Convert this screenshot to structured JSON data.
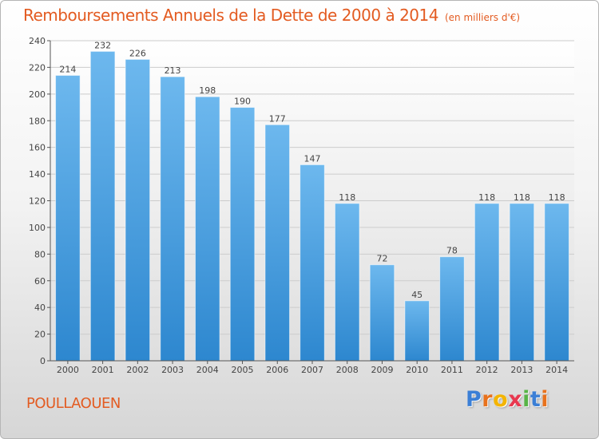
{
  "header": {
    "title": "Remboursements Annuels de la Dette de 2000 à 2014",
    "subtitle": "(en milliers d'€)"
  },
  "footer": {
    "commune": "POULLAOUEN",
    "brand": "Proxiti",
    "brand_letters": [
      "P",
      "r",
      "o",
      "x",
      "i",
      "t",
      "i"
    ]
  },
  "colors": {
    "title": "#e35b21",
    "bar_light": "#6db8ee",
    "bar_dark": "#2d87cf",
    "grid": "#cccccc",
    "brand_letters": [
      "#3b7fd6",
      "#e8721d",
      "#f4b400",
      "#e8384f",
      "#58b447",
      "#3b7fd6",
      "#e8721d"
    ]
  },
  "chart_data": {
    "type": "bar",
    "title": "Remboursements Annuels de la Dette de 2000 à 2014",
    "subtitle": "(en milliers d'€)",
    "xlabel": "",
    "ylabel": "",
    "categories": [
      "2000",
      "2001",
      "2002",
      "2003",
      "2004",
      "2005",
      "2006",
      "2007",
      "2008",
      "2009",
      "2010",
      "2011",
      "2012",
      "2013",
      "2014"
    ],
    "values": [
      214,
      232,
      226,
      213,
      198,
      190,
      177,
      147,
      118,
      72,
      45,
      78,
      118,
      118,
      118
    ],
    "ylim": [
      0,
      240
    ],
    "yticks": [
      0,
      20,
      40,
      60,
      80,
      100,
      120,
      140,
      160,
      180,
      200,
      220,
      240
    ],
    "grid": true,
    "data_labels": true
  }
}
